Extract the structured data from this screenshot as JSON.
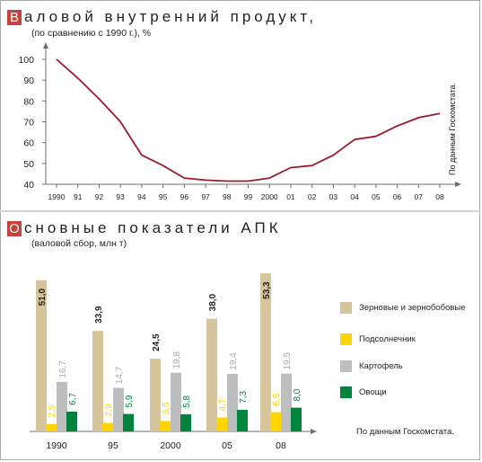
{
  "gdp": {
    "title_initial": "В",
    "title_rest": "аловой внутренний продукт,",
    "subtitle": "(по сравнению с 1990 г.), %",
    "source": "По данным Госкомстата."
  },
  "apk": {
    "title_initial": "О",
    "title_rest": "сновные показатели АПК",
    "subtitle": "(валовой сбор, млн т)",
    "source": "По данным Госкомстата."
  },
  "colors": {
    "line": "#9b1c2c",
    "grain": "#d6c49a",
    "sunflower": "#ffd400",
    "potato": "#bcbec0",
    "vegetables": "#00843d",
    "title_initial_bg": "#c8413b"
  },
  "chart_data": [
    {
      "type": "line",
      "title": "Валовой внутренний продукт,",
      "subtitle": "(по сравнению с 1990 г.), %",
      "x": [
        "1990",
        "91",
        "92",
        "93",
        "94",
        "95",
        "96",
        "97",
        "98",
        "99",
        "2000",
        "01",
        "02",
        "03",
        "04",
        "05",
        "06",
        "07",
        "08"
      ],
      "series": [
        {
          "values": [
            100,
            91,
            81,
            70,
            54,
            49,
            43,
            42,
            41.5,
            41.5,
            43,
            48,
            49,
            54,
            61.5,
            63,
            68,
            72,
            74
          ]
        }
      ],
      "ylim": [
        40,
        100
      ],
      "yticks": [
        40,
        50,
        60,
        70,
        80,
        90,
        100
      ],
      "grid": false,
      "source": "По данным Госкомстата."
    },
    {
      "type": "bar",
      "title": "Основные показатели АПК",
      "subtitle": "(валовой сбор, млн т)",
      "categories": [
        "1990",
        "95",
        "2000",
        "05",
        "08"
      ],
      "series": [
        {
          "name": "Зерновые и зернобобовые",
          "values": [
            51.0,
            33.9,
            24.5,
            38.0,
            53.3
          ],
          "labels": [
            "51,0",
            "33,9",
            "24,5",
            "38,0",
            "53,3"
          ]
        },
        {
          "name": "Подсолнечник",
          "values": [
            2.5,
            2.9,
            3.5,
            4.7,
            6.5
          ],
          "labels": [
            "2,5",
            "2,9",
            "3,5",
            "4,7",
            "6,5"
          ]
        },
        {
          "name": "Картофель",
          "values": [
            16.7,
            14.7,
            19.8,
            19.4,
            19.5
          ],
          "labels": [
            "16,7",
            "14,7",
            "19,8",
            "19,4",
            "19,5"
          ]
        },
        {
          "name": "Овощи",
          "values": [
            6.7,
            5.9,
            5.8,
            7.3,
            8.0
          ],
          "labels": [
            "6,7",
            "5,9",
            "5,8",
            "7,3",
            "8,0"
          ]
        }
      ],
      "legend_position": "right",
      "source": "По данным Госкомстата."
    }
  ]
}
